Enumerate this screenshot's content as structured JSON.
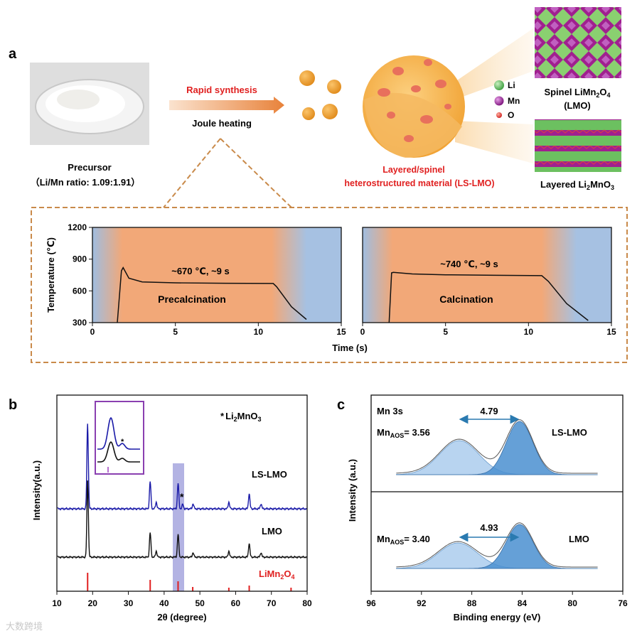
{
  "panel_a": {
    "label": "a",
    "precursor_title": "Precursor",
    "precursor_ratio": "（Li/Mn ratio: 1.09:1.91）",
    "arrow_top": "Rapid synthesis",
    "arrow_bottom": "Joule heating",
    "product_line1": "Layered/spinel",
    "product_line2": "heterostructured material (LS-LMO)",
    "legend_li": "Li",
    "legend_mn": "Mn",
    "legend_o": "O",
    "spinel_label_pre": "Spinel LiMn",
    "spinel_sub1": "2",
    "spinel_label_mid": "O",
    "spinel_sub2": "4",
    "spinel_abbr": "(LMO)",
    "layered_label_pre": "Layered Li",
    "layered_sub1": "2",
    "layered_label_post": "MnO",
    "layered_sub2": "3",
    "colors": {
      "li": "#5cb85c",
      "mn": "#9b1c9b",
      "o": "#e03c3c",
      "orange": "#e8823a",
      "red": "#e02020"
    }
  },
  "chart_data": [
    {
      "id": "temperature-precalcination",
      "type": "line",
      "ylabel": "Temperature (℃)",
      "xlabel": "Time (s)",
      "xlim": [
        0,
        15
      ],
      "ylim": [
        300,
        1200
      ],
      "xticks": [
        "0",
        "5",
        "10",
        "15"
      ],
      "yticks": [
        "300",
        "600",
        "900",
        "1200"
      ],
      "annotation": "~670 ℃, ~9 s",
      "stage_label": "Precalcination",
      "x": [
        1.5,
        1.75,
        1.85,
        2.2,
        3.0,
        5.0,
        8.0,
        10.9,
        11.1,
        12.0,
        12.9
      ],
      "y": [
        300,
        790,
        820,
        720,
        685,
        676,
        672,
        670,
        640,
        450,
        330
      ]
    },
    {
      "id": "temperature-calcination",
      "type": "line",
      "xlim": [
        0,
        15
      ],
      "ylim": [
        300,
        1200
      ],
      "xticks": [
        "0",
        "5",
        "10",
        "15"
      ],
      "annotation": "~740 ℃, ~9 s",
      "stage_label": "Calcination",
      "x": [
        1.6,
        1.75,
        1.85,
        3.0,
        5.0,
        8.0,
        10.8,
        11.2,
        12.3,
        13.6
      ],
      "y": [
        300,
        770,
        775,
        760,
        752,
        747,
        744,
        690,
        480,
        320
      ]
    },
    {
      "id": "xrd",
      "label": "b",
      "type": "line",
      "xlabel": "2θ (degree)",
      "ylabel": "Intensity(a.u.)",
      "xlim": [
        10,
        80
      ],
      "xticks": [
        "10",
        "20",
        "30",
        "40",
        "50",
        "60",
        "70",
        "80"
      ],
      "legend_star": "*",
      "legend_pre": "Li",
      "legend_sub1": "2",
      "legend_mid": "MnO",
      "legend_sub2": "3",
      "series_labels": [
        "LS-LMO",
        "LMO"
      ],
      "ref_label_pre": "LiMn",
      "ref_sub1": "2",
      "ref_mid": "O",
      "ref_sub2": "4",
      "peaks_2theta": [
        18.6,
        36.1,
        37.8,
        43.9,
        48.1,
        58.1,
        63.8,
        67.1
      ],
      "peak_heights": [
        1.0,
        0.32,
        0.08,
        0.3,
        0.06,
        0.08,
        0.18,
        0.06
      ],
      "star_peak": 45.2,
      "ref_bars": [
        18.6,
        36.1,
        43.9,
        48.0,
        58.1,
        63.8,
        75.5
      ],
      "colors": {
        "ls_lmo": "#1a1aa8",
        "lmo": "#111111",
        "ref": "#e02020",
        "inset": "#8a3fb0",
        "band": "#8080d0"
      }
    },
    {
      "id": "xps",
      "label": "c",
      "type": "area",
      "xlabel": "Binding energy (eV)",
      "ylabel": "Intensity (a.u.)",
      "xlim": [
        96,
        76
      ],
      "xticks": [
        "96",
        "92",
        "88",
        "84",
        "80",
        "76"
      ],
      "title": "Mn 3s",
      "top": {
        "name": "LS-LMO",
        "split": "4.79",
        "aos_label": "Mn",
        "aos_sub": "AOS",
        "aos_value": "= 3.56",
        "peaks": [
          84.2,
          89.0
        ]
      },
      "bottom": {
        "name": "LMO",
        "split": "4.93",
        "aos_label": "Mn",
        "aos_sub": "AOS",
        "aos_value": "= 3.40",
        "peaks": [
          84.2,
          89.1
        ]
      },
      "colors": {
        "fill_dark": "#4a8fd0",
        "fill_light": "#b8d4f0",
        "arrow": "#2a7ab0"
      }
    }
  ],
  "watermark": "大数跨境"
}
